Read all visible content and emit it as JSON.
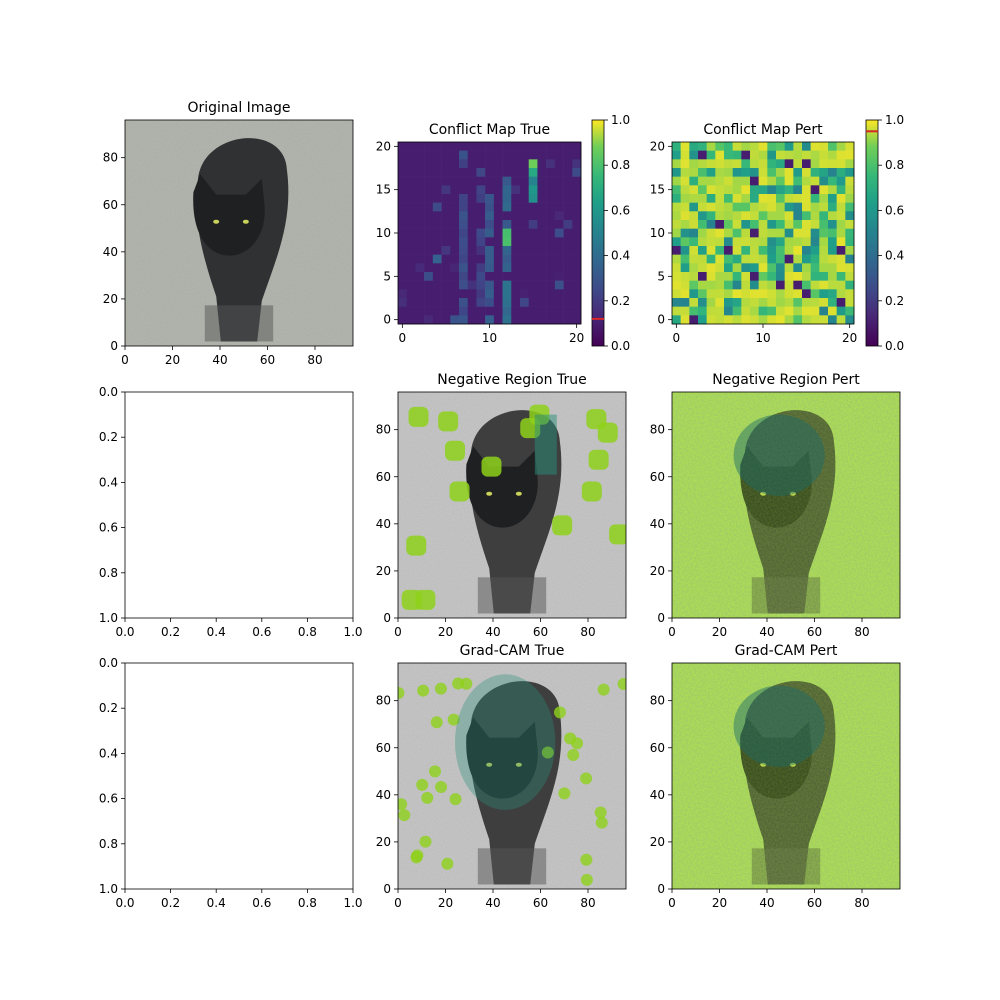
{
  "figure": {
    "background": "#ffffff"
  },
  "chart_data": [
    {
      "id": "original",
      "type": "image",
      "title": "Original Image",
      "content": "cat-photo",
      "xlim": [
        0,
        96
      ],
      "ylim": [
        96,
        0
      ],
      "xticks": [
        "0",
        "20",
        "40",
        "60",
        "80"
      ],
      "yticks": [
        "0",
        "20",
        "40",
        "60",
        "80"
      ],
      "xtick_values": [
        0,
        20,
        40,
        60,
        80
      ],
      "ytick_values": [
        0,
        20,
        40,
        60,
        80
      ]
    },
    {
      "id": "conflict-true",
      "type": "heatmap",
      "title": "Conflict Map True",
      "colormap": "viridis",
      "grid_size": [
        21,
        21
      ],
      "background_level": 0.1,
      "hotspots": [
        {
          "col": 15,
          "rows": [
            0,
            1,
            2,
            3,
            4,
            5,
            6,
            7
          ],
          "value": 0.6
        },
        {
          "col": 15,
          "rows": [
            2,
            3,
            4
          ],
          "value": 0.95
        },
        {
          "col": 12,
          "rows": [
            4,
            5,
            6,
            7,
            8,
            9,
            10,
            11,
            12,
            13,
            14,
            15,
            16,
            17,
            18,
            19,
            20
          ],
          "value": 0.45
        },
        {
          "col": 12,
          "rows": [
            9,
            10,
            11
          ],
          "value": 0.9
        },
        {
          "col": 10,
          "rows": [
            6,
            7,
            8,
            9,
            10,
            11,
            12,
            13,
            14,
            15,
            16,
            17,
            18,
            19,
            20
          ],
          "value": 0.35
        },
        {
          "col": 7,
          "rows": [
            1,
            2,
            3,
            4,
            5,
            6,
            7,
            8,
            9,
            10,
            11,
            12,
            13,
            14,
            15,
            16,
            17,
            18,
            19,
            20
          ],
          "value": 0.3
        },
        {
          "col": 9,
          "rows": [
            3,
            4,
            5,
            6,
            7,
            8,
            9,
            10,
            11,
            12,
            13,
            14,
            15,
            16,
            17,
            18
          ],
          "value": 0.25
        }
      ],
      "xlim": [
        -0.5,
        20.5
      ],
      "ylim": [
        20.5,
        -0.5
      ],
      "xticks": [
        "0",
        "10",
        "20"
      ],
      "xtick_values": [
        0,
        10,
        20
      ],
      "yticks": [
        "0",
        "5",
        "10",
        "15",
        "20"
      ],
      "ytick_values": [
        0,
        5,
        10,
        15,
        20
      ],
      "colorbar": {
        "range": [
          0,
          1
        ],
        "ticks": [
          "0.0",
          "0.2",
          "0.4",
          "0.6",
          "0.8",
          "1.0"
        ],
        "tick_values": [
          0,
          0.2,
          0.4,
          0.6,
          0.8,
          1.0
        ],
        "marker_value": 0.12,
        "marker_color": "#d62728"
      }
    },
    {
      "id": "conflict-pert",
      "type": "heatmap",
      "title": "Conflict Map Pert",
      "colormap": "viridis",
      "grid_size": [
        21,
        21
      ],
      "background_level": 0.9,
      "xlim": [
        -0.5,
        20.5
      ],
      "ylim": [
        20.5,
        -0.5
      ],
      "xticks": [
        "0",
        "10",
        "20"
      ],
      "xtick_values": [
        0,
        10,
        20
      ],
      "yticks": [
        "0",
        "5",
        "10",
        "15",
        "20"
      ],
      "ytick_values": [
        0,
        5,
        10,
        15,
        20
      ],
      "colorbar": {
        "range": [
          0,
          1
        ],
        "ticks": [
          "0.0",
          "0.2",
          "0.4",
          "0.6",
          "0.8",
          "1.0"
        ],
        "tick_values": [
          0,
          0.2,
          0.4,
          0.6,
          0.8,
          1.0
        ],
        "marker_value": 0.95,
        "marker_color": "#d62728"
      }
    },
    {
      "id": "empty-1",
      "type": "empty",
      "title": "",
      "xlim": [
        0,
        1
      ],
      "ylim": [
        0,
        1
      ],
      "xticks": [
        "0.0",
        "0.2",
        "0.4",
        "0.6",
        "0.8",
        "1.0"
      ],
      "xtick_values": [
        0,
        0.2,
        0.4,
        0.6,
        0.8,
        1.0
      ],
      "yticks": [
        "0.0",
        "0.2",
        "0.4",
        "0.6",
        "0.8",
        "1.0"
      ],
      "ytick_values": [
        0,
        0.2,
        0.4,
        0.6,
        0.8,
        1.0
      ]
    },
    {
      "id": "negative-true",
      "type": "image-overlay",
      "title": "Negative Region True",
      "content": "grayscale-cat-with-sparse-green-blobs",
      "xlim": [
        0,
        96
      ],
      "ylim": [
        96,
        0
      ],
      "xticks": [
        "0",
        "20",
        "40",
        "60",
        "80"
      ],
      "xtick_values": [
        0,
        20,
        40,
        60,
        80
      ],
      "yticks": [
        "0",
        "20",
        "40",
        "60",
        "80"
      ],
      "ytick_values": [
        0,
        20,
        40,
        60,
        80
      ]
    },
    {
      "id": "negative-pert",
      "type": "image-overlay",
      "title": "Negative Region Pert",
      "content": "grayscale-cat-with-dense-green-overlay",
      "xlim": [
        0,
        96
      ],
      "ylim": [
        96,
        0
      ],
      "xticks": [
        "0",
        "20",
        "40",
        "60",
        "80"
      ],
      "xtick_values": [
        0,
        20,
        40,
        60,
        80
      ],
      "yticks": [
        "0",
        "20",
        "40",
        "60",
        "80"
      ],
      "ytick_values": [
        0,
        20,
        40,
        60,
        80
      ]
    },
    {
      "id": "empty-2",
      "type": "empty",
      "title": "",
      "xlim": [
        0,
        1
      ],
      "ylim": [
        0,
        1
      ],
      "xticks": [
        "0.0",
        "0.2",
        "0.4",
        "0.6",
        "0.8",
        "1.0"
      ],
      "xtick_values": [
        0,
        0.2,
        0.4,
        0.6,
        0.8,
        1.0
      ],
      "yticks": [
        "0.0",
        "0.2",
        "0.4",
        "0.6",
        "0.8",
        "1.0"
      ],
      "ytick_values": [
        0,
        0.2,
        0.4,
        0.6,
        0.8,
        1.0
      ]
    },
    {
      "id": "gradcam-true",
      "type": "image-overlay",
      "title": "Grad-CAM True",
      "content": "grayscale-cat-with-green-dots",
      "xlim": [
        0,
        96
      ],
      "ylim": [
        96,
        0
      ],
      "xticks": [
        "0",
        "20",
        "40",
        "60",
        "80"
      ],
      "xtick_values": [
        0,
        20,
        40,
        60,
        80
      ],
      "yticks": [
        "0",
        "20",
        "40",
        "60",
        "80"
      ],
      "ytick_values": [
        0,
        20,
        40,
        60,
        80
      ]
    },
    {
      "id": "gradcam-pert",
      "type": "image-overlay",
      "title": "Grad-CAM Pert",
      "content": "grayscale-cat-with-dense-green-overlay",
      "xlim": [
        0,
        96
      ],
      "ylim": [
        96,
        0
      ],
      "xticks": [
        "0",
        "20",
        "40",
        "60",
        "80"
      ],
      "xtick_values": [
        0,
        20,
        40,
        60,
        80
      ],
      "yticks": [
        "0",
        "20",
        "40",
        "60",
        "80"
      ],
      "ytick_values": [
        0,
        20,
        40,
        60,
        80
      ]
    }
  ]
}
